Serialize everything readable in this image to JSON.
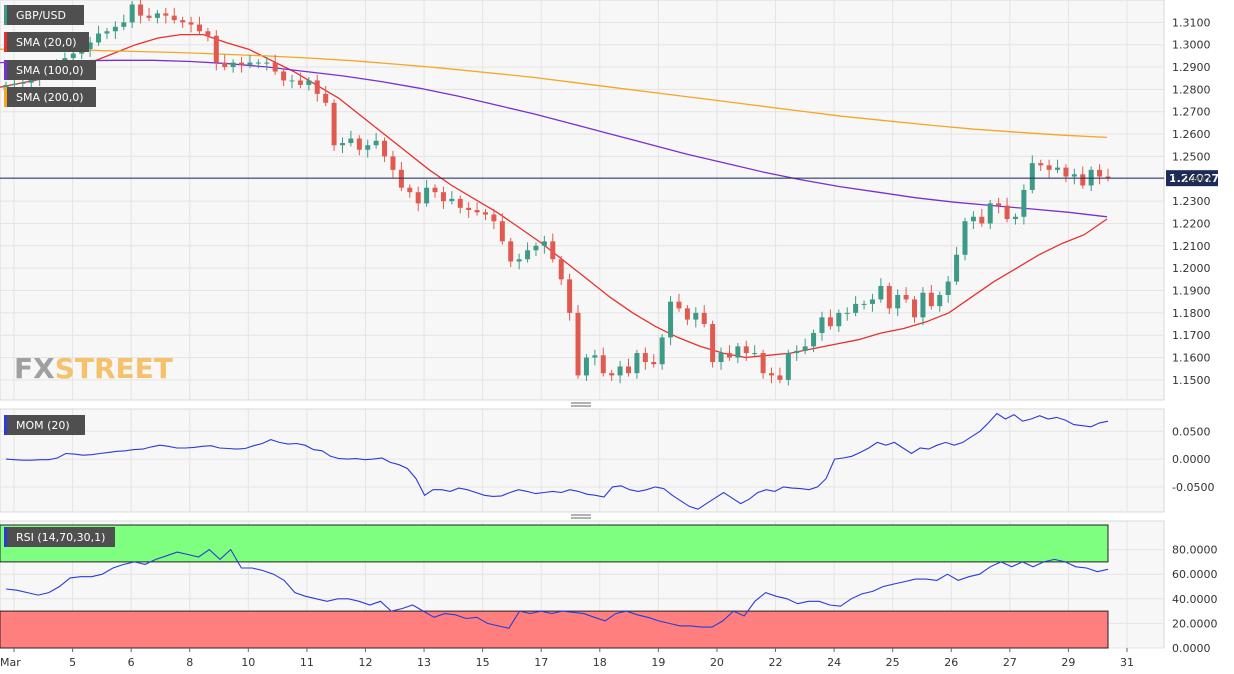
{
  "chart_data": [
    {
      "type": "candlestick",
      "symbol_label": "GBP/USD",
      "last_price_label": "1.24027",
      "watermark": {
        "part1": "FX",
        "part2": "STREET"
      },
      "x_tick_labels": [
        "Mar",
        "5",
        "6",
        "8",
        "10",
        "11",
        "12",
        "13",
        "15",
        "17",
        "18",
        "19",
        "20",
        "22",
        "24",
        "25",
        "26",
        "27",
        "29",
        "31"
      ],
      "y_ticks": [
        "1.1500",
        "1.1600",
        "1.1700",
        "1.1800",
        "1.1900",
        "1.2000",
        "1.2100",
        "1.2200",
        "1.2300",
        "1.2400",
        "1.2500",
        "1.2600",
        "1.2700",
        "1.2800",
        "1.2900",
        "1.3000",
        "1.3100"
      ],
      "ylim": [
        1.141,
        1.32
      ],
      "close_series": [
        1.282,
        1.2825,
        1.283,
        1.285,
        1.2865,
        1.289,
        1.292,
        1.294,
        1.296,
        1.298,
        1.301,
        1.305,
        1.306,
        1.308,
        1.31,
        1.318,
        1.313,
        1.312,
        1.314,
        1.313,
        1.311,
        1.31,
        1.309,
        1.306,
        1.304,
        1.292,
        1.29,
        1.292,
        1.291,
        1.292,
        1.292,
        1.292,
        1.288,
        1.284,
        1.284,
        1.282,
        1.284,
        1.278,
        1.274,
        1.255,
        1.256,
        1.258,
        1.253,
        1.255,
        1.257,
        1.25,
        1.244,
        1.236,
        1.234,
        1.229,
        1.236,
        1.234,
        1.23,
        1.231,
        1.227,
        1.226,
        1.225,
        1.224,
        1.221,
        1.212,
        1.203,
        1.204,
        1.208,
        1.21,
        1.212,
        1.204,
        1.195,
        1.18,
        1.152,
        1.16,
        1.161,
        1.153,
        1.152,
        1.156,
        1.153,
        1.162,
        1.158,
        1.157,
        1.169,
        1.185,
        1.182,
        1.177,
        1.18,
        1.175,
        1.158,
        1.162,
        1.16,
        1.165,
        1.162,
        1.162,
        1.153,
        1.152,
        1.15,
        1.162,
        1.163,
        1.165,
        1.171,
        1.178,
        1.174,
        1.18,
        1.18,
        1.184,
        1.184,
        1.186,
        1.192,
        1.182,
        1.188,
        1.186,
        1.178,
        1.189,
        1.183,
        1.188,
        1.194,
        1.206,
        1.221,
        1.223,
        1.22,
        1.229,
        1.228,
        1.222,
        1.223,
        1.235,
        1.247,
        1.246,
        1.244,
        1.245,
        1.241,
        1.242,
        1.237,
        1.244,
        1.241,
        1.2403
      ],
      "series": [
        {
          "name": "SMA (20,0)",
          "color": "#e8312c",
          "values": [
            1.281,
            1.283,
            1.285,
            1.288,
            1.292,
            1.296,
            1.3,
            1.303,
            1.3045,
            1.3045,
            1.301,
            1.298,
            1.293,
            1.288,
            1.282,
            1.276,
            1.268,
            1.26,
            1.252,
            1.244,
            1.237,
            1.231,
            1.225,
            1.218,
            1.211,
            1.203,
            1.195,
            1.187,
            1.18,
            1.174,
            1.169,
            1.165,
            1.162,
            1.16,
            1.161,
            1.162,
            1.164,
            1.166,
            1.168,
            1.171,
            1.173,
            1.176,
            1.18,
            1.187,
            1.194,
            1.2,
            1.206,
            1.211,
            1.215,
            1.222
          ]
        },
        {
          "name": "SMA (100,0)",
          "color": "#7a2fd0",
          "values": [
            1.292,
            1.2925,
            1.2928,
            1.293,
            1.293,
            1.2925,
            1.2915,
            1.29,
            1.288,
            1.286,
            1.2835,
            1.2805,
            1.277,
            1.273,
            1.269,
            1.2645,
            1.26,
            1.2555,
            1.251,
            1.247,
            1.243,
            1.2395,
            1.2365,
            1.234,
            1.2315,
            1.2295,
            1.228,
            1.2265,
            1.225,
            1.223
          ]
        },
        {
          "name": "SMA (200,0)",
          "color": "#f5a623",
          "values": [
            1.298,
            1.2978,
            1.2975,
            1.297,
            1.2965,
            1.2958,
            1.295,
            1.294,
            1.2928,
            1.2912,
            1.2895,
            1.2875,
            1.2855,
            1.283,
            1.2805,
            1.278,
            1.2755,
            1.273,
            1.2705,
            1.268,
            1.266,
            1.264,
            1.2622,
            1.2608,
            1.2595,
            1.2585
          ]
        }
      ]
    },
    {
      "type": "line",
      "label": "MOM (20)",
      "y_ticks": [
        "0.0500",
        "0.0000",
        "-0.0500"
      ],
      "ylim": [
        -0.095,
        0.09
      ],
      "series": [
        {
          "name": "MOM (20)",
          "color": "#2a3bd8",
          "values": [
            0,
            -0.001,
            -0.002,
            -0.002,
            -0.001,
            -0.001,
            0.002,
            0.01,
            0.009,
            0.007,
            0.008,
            0.01,
            0.012,
            0.014,
            0.015,
            0.017,
            0.018,
            0.022,
            0.025,
            0.023,
            0.02,
            0.02,
            0.021,
            0.023,
            0.024,
            0.02,
            0.019,
            0.018,
            0.019,
            0.024,
            0.028,
            0.035,
            0.03,
            0.027,
            0.028,
            0.025,
            0.017,
            0.015,
            0.005,
            0.001,
            0.0,
            0.001,
            -0.001,
            0.0,
            0.002,
            -0.006,
            -0.01,
            -0.017,
            -0.035,
            -0.065,
            -0.055,
            -0.055,
            -0.058,
            -0.052,
            -0.055,
            -0.06,
            -0.065,
            -0.067,
            -0.066,
            -0.06,
            -0.055,
            -0.058,
            -0.062,
            -0.06,
            -0.058,
            -0.06,
            -0.055,
            -0.058,
            -0.063,
            -0.065,
            -0.068,
            -0.05,
            -0.048,
            -0.055,
            -0.058,
            -0.055,
            -0.05,
            -0.053,
            -0.065,
            -0.075,
            -0.085,
            -0.09,
            -0.08,
            -0.07,
            -0.06,
            -0.07,
            -0.08,
            -0.072,
            -0.06,
            -0.055,
            -0.058,
            -0.05,
            -0.052,
            -0.053,
            -0.055,
            -0.05,
            -0.035,
            0.0,
            0.002,
            0.005,
            0.012,
            0.02,
            0.03,
            0.025,
            0.03,
            0.02,
            0.01,
            0.02,
            0.018,
            0.025,
            0.03,
            0.025,
            0.03,
            0.04,
            0.05,
            0.065,
            0.082,
            0.072,
            0.08,
            0.068,
            0.072,
            0.078,
            0.072,
            0.075,
            0.07,
            0.062,
            0.06,
            0.058,
            0.065,
            0.068
          ]
        }
      ]
    },
    {
      "type": "line",
      "label": "RSI (14,70,30,1)",
      "y_ticks": [
        "80.0000",
        "60.0000",
        "40.0000",
        "20.0000",
        "0.0000"
      ],
      "ylim": [
        0,
        100
      ],
      "overbought": 70,
      "oversold": 30,
      "zone_colors": {
        "overbought": "#7fff7f",
        "oversold": "#ff7f7f"
      },
      "series": [
        {
          "name": "RSI",
          "color": "#2a3bd8",
          "values": [
            48,
            47,
            45,
            43,
            45,
            50,
            57,
            58,
            58,
            60,
            65,
            68,
            70,
            68,
            72,
            75,
            78,
            76,
            74,
            80,
            72,
            80,
            65,
            65,
            63,
            60,
            55,
            45,
            42,
            40,
            38,
            40,
            40,
            38,
            35,
            38,
            30,
            32,
            35,
            30,
            25,
            28,
            27,
            24,
            25,
            20,
            18,
            16,
            30,
            28,
            30,
            28,
            30,
            29,
            28,
            25,
            22,
            28,
            30,
            27,
            25,
            22,
            20,
            18,
            18,
            17,
            17,
            22,
            30,
            26,
            38,
            45,
            42,
            40,
            36,
            38,
            38,
            35,
            34,
            40,
            44,
            46,
            50,
            52,
            54,
            56,
            56,
            55,
            60,
            55,
            58,
            60,
            66,
            70,
            66,
            70,
            66,
            70,
            72,
            70,
            66,
            65,
            62,
            64
          ]
        }
      ]
    }
  ]
}
